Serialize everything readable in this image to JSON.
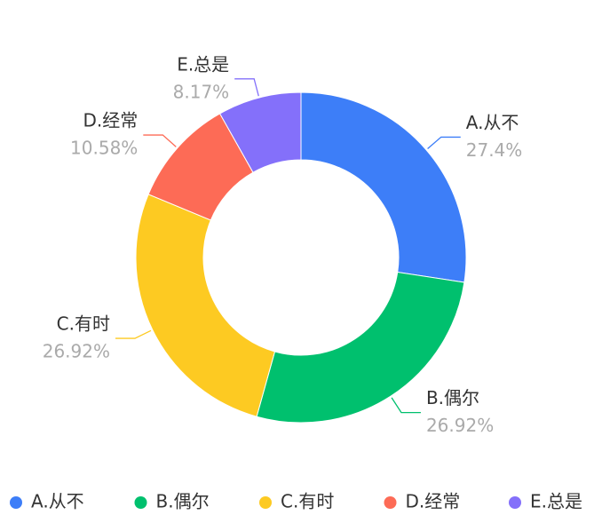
{
  "chart_data": {
    "type": "pie",
    "categories": [
      "A.从不",
      "B.偶尔",
      "C.有时",
      "D.经常",
      "E.总是"
    ],
    "values": [
      27.4,
      26.92,
      26.92,
      10.58,
      8.17
    ],
    "value_labels": [
      "27.4%",
      "26.92%",
      "26.92%",
      "10.58%",
      "8.17%"
    ],
    "colors": [
      "#3d7ef8",
      "#00c06e",
      "#fdca22",
      "#fd6b56",
      "#8470fa"
    ],
    "legend": "bottom"
  }
}
